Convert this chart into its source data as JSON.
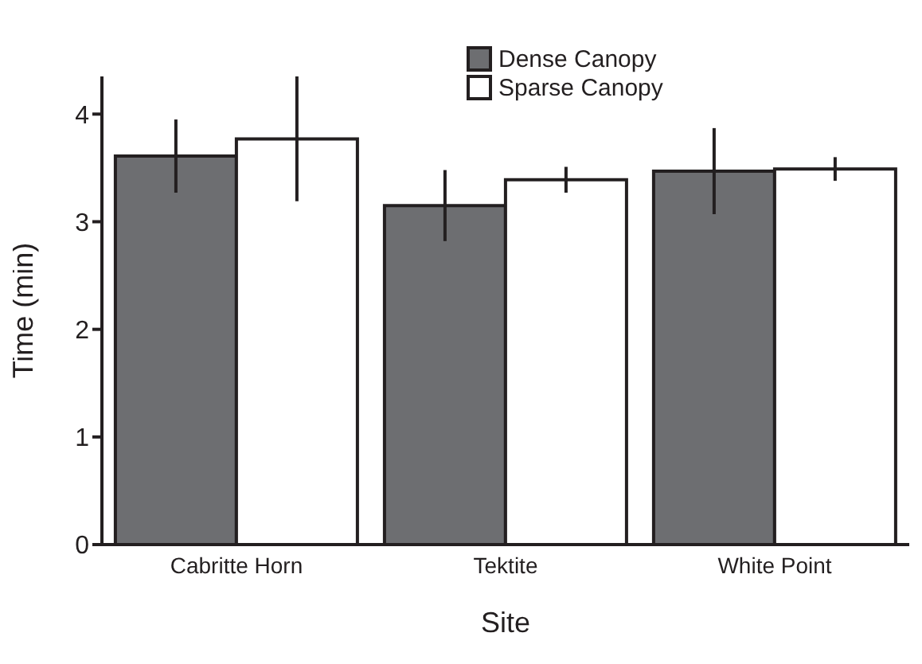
{
  "chart_data": {
    "type": "bar",
    "xlabel": "Site",
    "ylabel": "Time (min)",
    "categories": [
      "Cabritte Horn",
      "Tektite",
      "White Point"
    ],
    "series": [
      {
        "name": "Dense Canopy",
        "color": "#6d6e71",
        "values": [
          3.61,
          3.15,
          3.47
        ],
        "errors": [
          0.34,
          0.33,
          0.4
        ]
      },
      {
        "name": "Sparse Canopy",
        "color": "#ffffff",
        "values": [
          3.77,
          3.39,
          3.49
        ],
        "errors": [
          0.58,
          0.12,
          0.11
        ]
      }
    ],
    "ylim": [
      0,
      4.35
    ],
    "yticks": [
      0,
      1,
      2,
      3,
      4
    ],
    "grid": false,
    "legend": "top"
  }
}
